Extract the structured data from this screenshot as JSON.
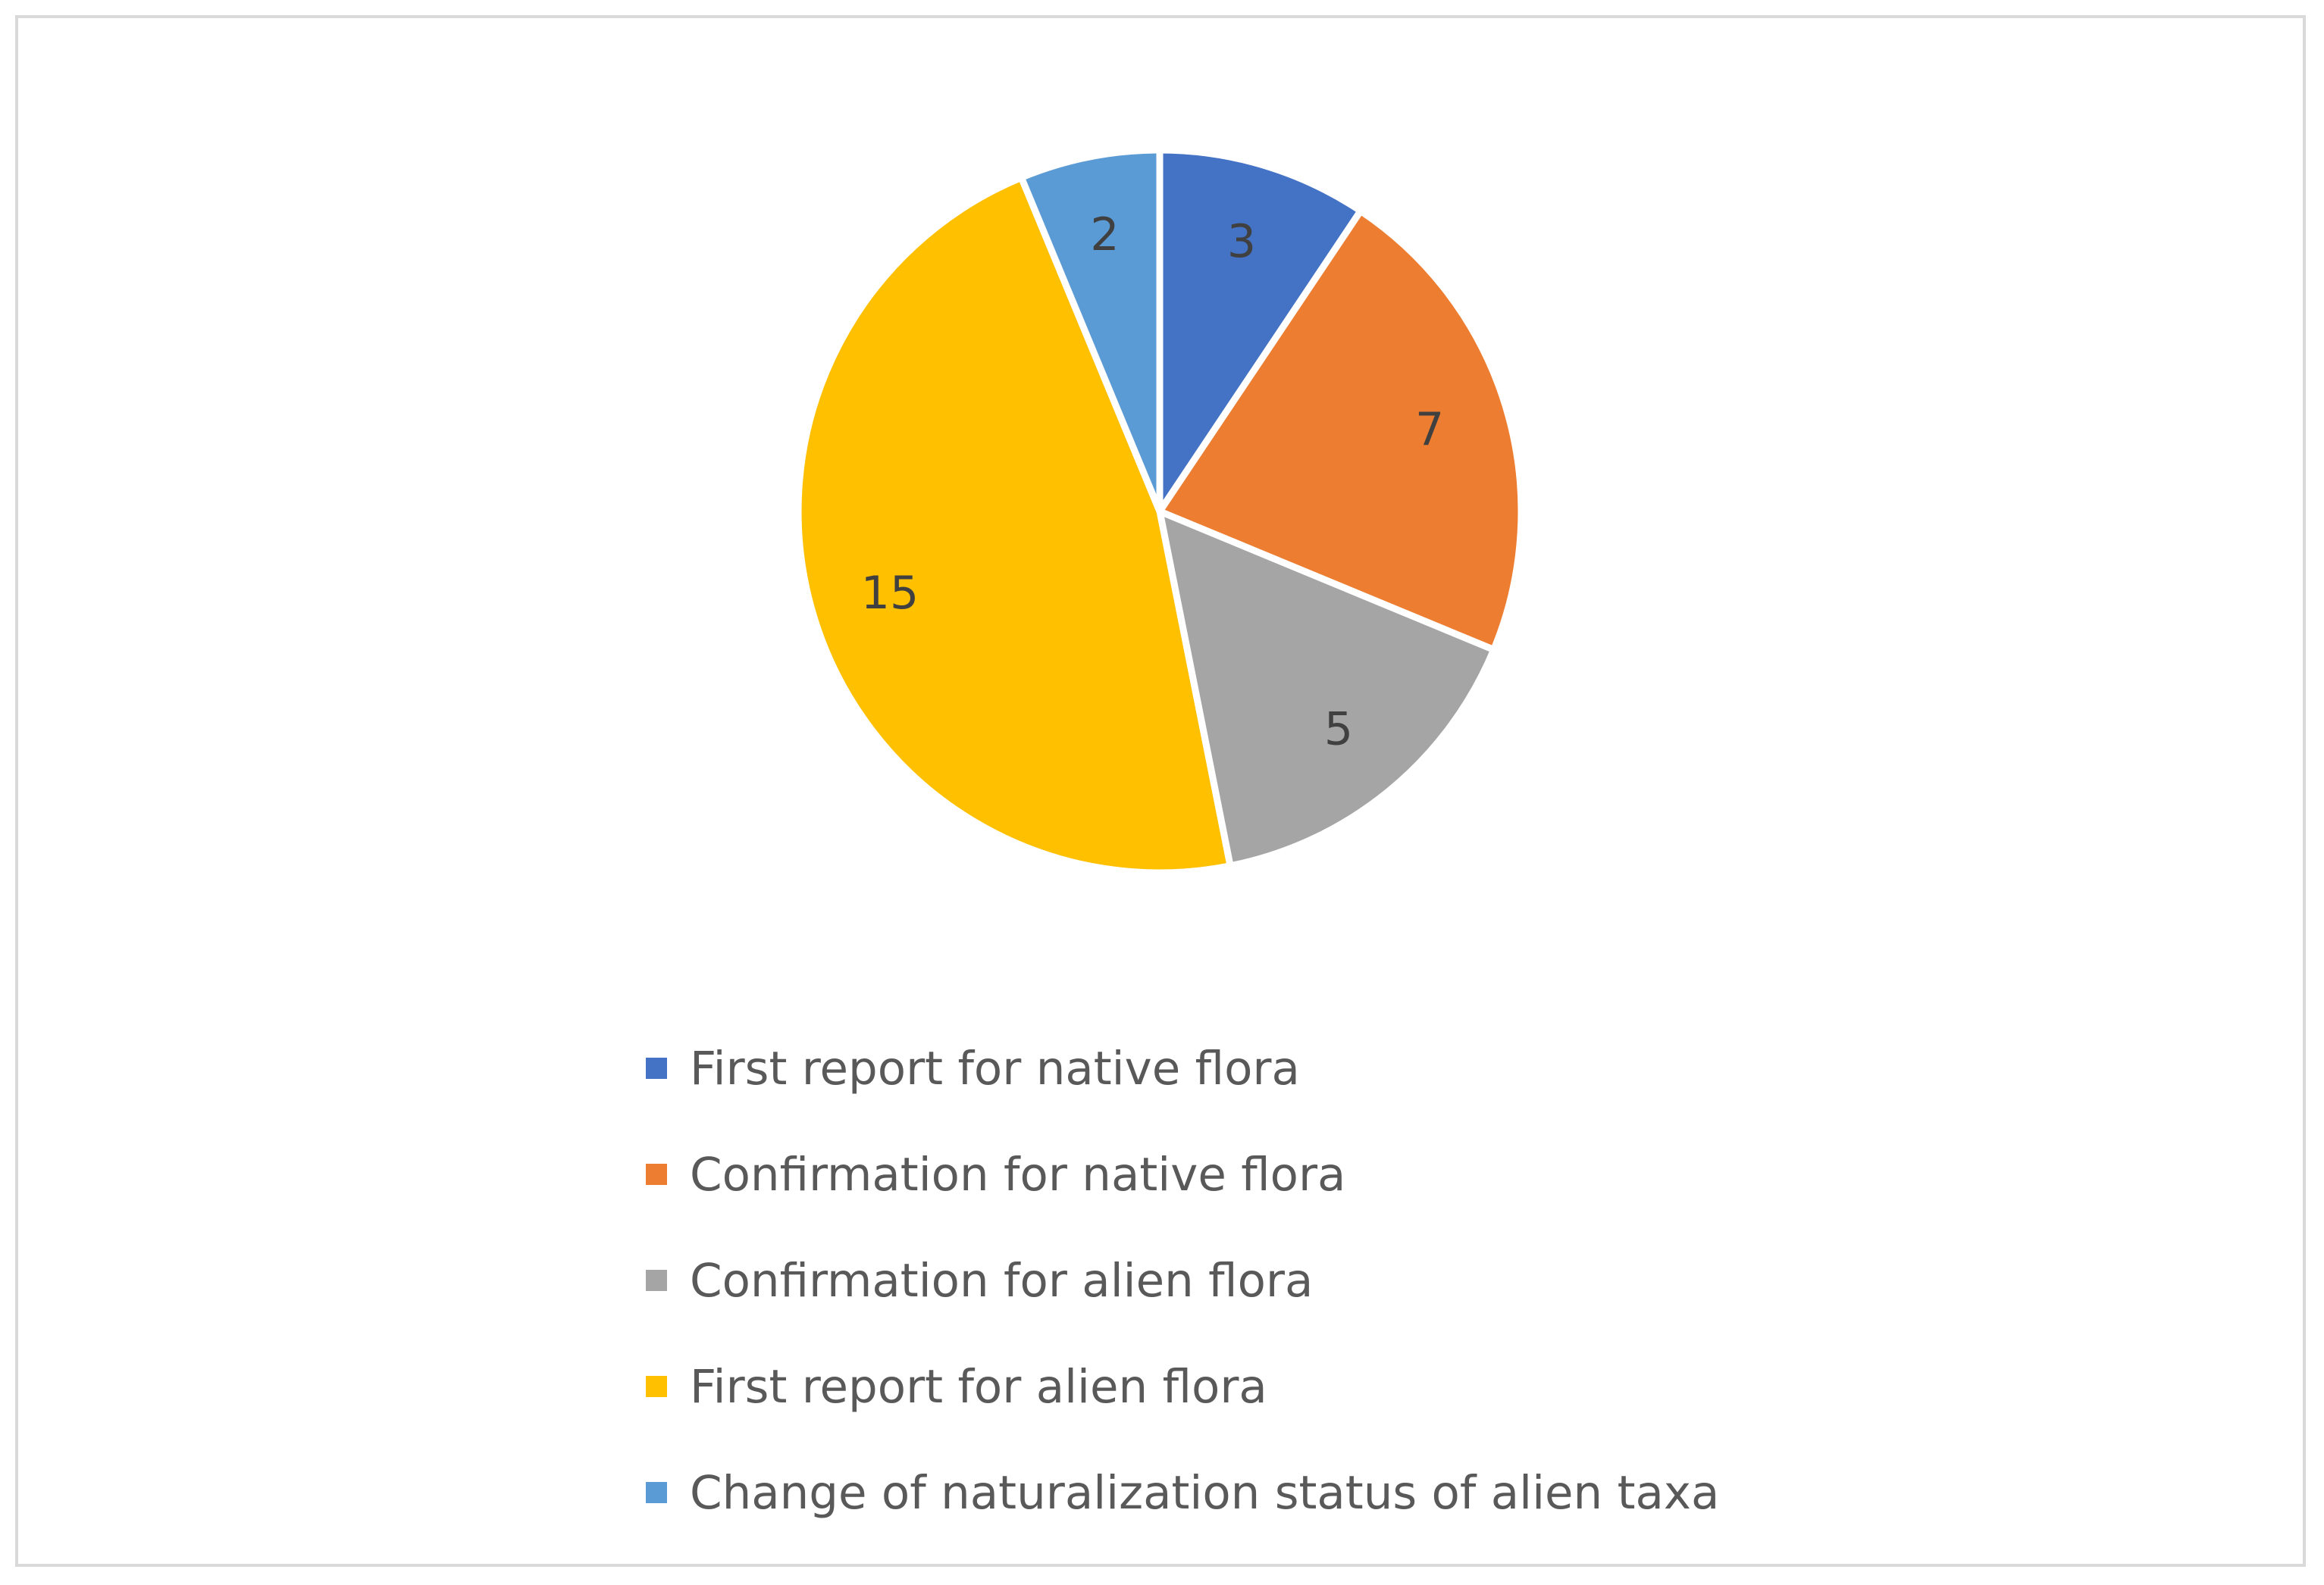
{
  "chart_data": {
    "type": "pie",
    "title": "",
    "start_angle_deg": 0,
    "direction": "clockwise",
    "slices": [
      {
        "label": "First report for native flora",
        "value": 3,
        "color": "#4472C4"
      },
      {
        "label": "Confirmation for native flora",
        "value": 7,
        "color": "#ED7D31"
      },
      {
        "label": "Confirmation for alien flora",
        "value": 5,
        "color": "#A5A5A5"
      },
      {
        "label": "First report for alien flora",
        "value": 15,
        "color": "#FFC000"
      },
      {
        "label": "Change of naturalization status of alien taxa",
        "value": 2,
        "color": "#5B9BD5"
      }
    ],
    "data_labels": "value",
    "legend_position": "bottom"
  }
}
